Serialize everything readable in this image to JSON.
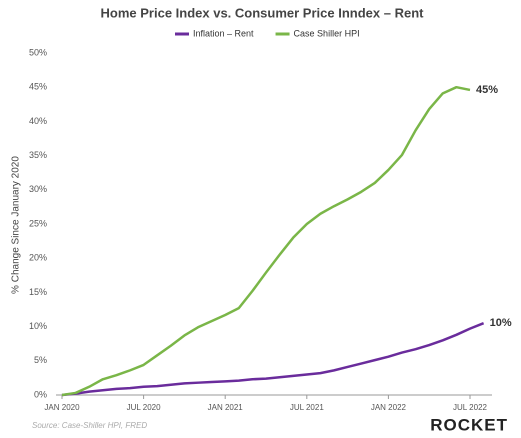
{
  "chart_data": {
    "type": "line",
    "title": "Home Price Index vs. Consumer Price Inndex – Rent",
    "y_label": "% Change Since January 2020",
    "source": "Source: Case-Shiller HPI, FRED",
    "logo": "ROCKET",
    "x": [
      "2020-01",
      "2020-02",
      "2020-03",
      "2020-04",
      "2020-05",
      "2020-06",
      "2020-07",
      "2020-08",
      "2020-09",
      "2020-10",
      "2020-11",
      "2020-12",
      "2021-01",
      "2021-02",
      "2021-03",
      "2021-04",
      "2021-05",
      "2021-06",
      "2021-07",
      "2021-08",
      "2021-09",
      "2021-10",
      "2021-11",
      "2021-12",
      "2022-01",
      "2022-02",
      "2022-03",
      "2022-04",
      "2022-05",
      "2022-06",
      "2022-07",
      "2022-08"
    ],
    "series": [
      {
        "name": "Inflation – Rent",
        "color": "#6a2c9c",
        "values": [
          0,
          0.2,
          0.5,
          0.7,
          0.9,
          1.0,
          1.2,
          1.3,
          1.5,
          1.7,
          1.8,
          1.9,
          2.0,
          2.1,
          2.3,
          2.4,
          2.6,
          2.8,
          3.0,
          3.2,
          3.6,
          4.1,
          4.6,
          5.1,
          5.6,
          6.2,
          6.7,
          7.3,
          8.0,
          8.8,
          9.7,
          10.5
        ],
        "end_label": "10%"
      },
      {
        "name": "Case Shiller HPI",
        "color": "#7ab648",
        "values": [
          0,
          0.3,
          1.2,
          2.3,
          2.9,
          3.6,
          4.4,
          5.8,
          7.2,
          8.7,
          9.9,
          10.8,
          11.7,
          12.7,
          15.2,
          17.9,
          20.5,
          23.0,
          25.0,
          26.5,
          27.6,
          28.6,
          29.7,
          31.0,
          32.9,
          35.1,
          38.7,
          41.8,
          44.1,
          45.0,
          44.6,
          null
        ],
        "end_label": "45%"
      }
    ],
    "ylim": [
      0,
      50
    ],
    "yticks": [
      {
        "value": 0,
        "label": "0%"
      },
      {
        "value": 5,
        "label": "5%"
      },
      {
        "value": 10,
        "label": "10%"
      },
      {
        "value": 15,
        "label": "15%"
      },
      {
        "value": 20,
        "label": "20%"
      },
      {
        "value": 25,
        "label": "25%"
      },
      {
        "value": 30,
        "label": "30%"
      },
      {
        "value": 35,
        "label": "35%"
      },
      {
        "value": 40,
        "label": "40%"
      },
      {
        "value": 45,
        "label": "45%"
      },
      {
        "value": 50,
        "label": "50%"
      }
    ],
    "xticks": [
      {
        "value": "2020-01",
        "label": "JAN 2020"
      },
      {
        "value": "2020-07",
        "label": "JUL 2020"
      },
      {
        "value": "2021-01",
        "label": "JAN 2021"
      },
      {
        "value": "2021-07",
        "label": "JUL 2021"
      },
      {
        "value": "2022-01",
        "label": "JAN 2022"
      },
      {
        "value": "2022-07",
        "label": "JUL 2022"
      }
    ],
    "grid": false
  }
}
